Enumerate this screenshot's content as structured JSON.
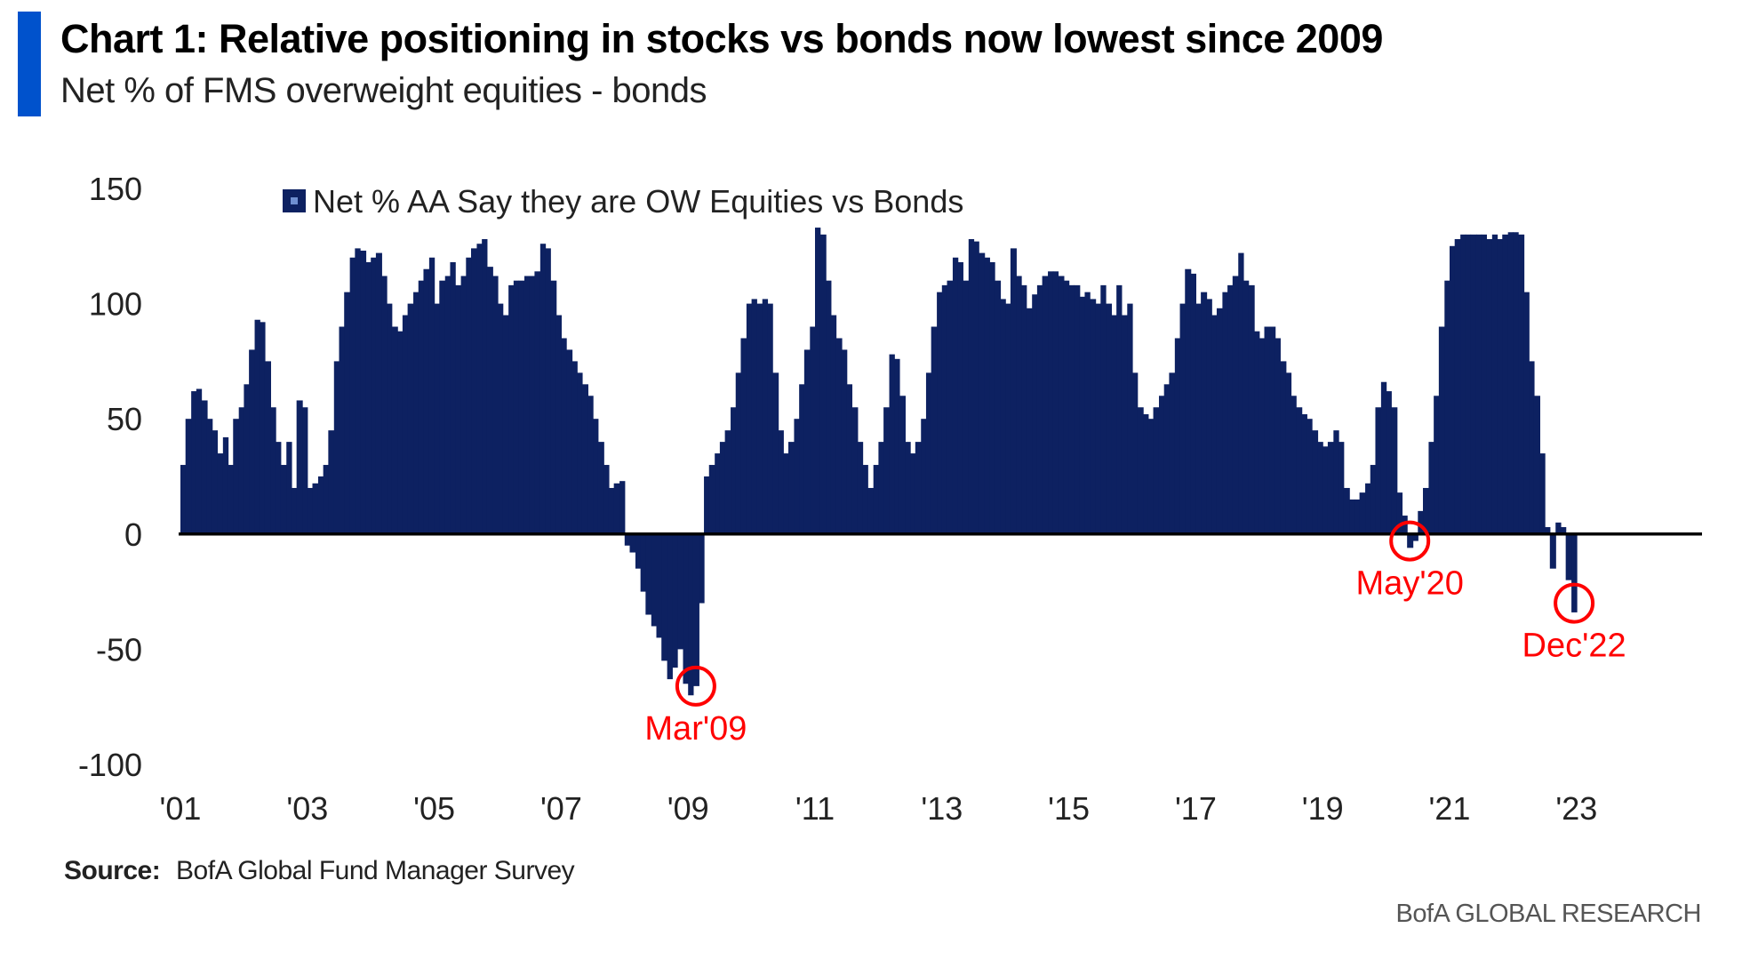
{
  "header": {
    "title": "Chart 1: Relative positioning in stocks vs bonds now lowest since 2009",
    "subtitle": "Net % of FMS overweight equities - bonds"
  },
  "footer": {
    "source_label": "Source:",
    "source_text": "BofA Global Fund Manager Survey",
    "brand": "BofA GLOBAL RESEARCH"
  },
  "colors": {
    "bars": "#0d2161",
    "zero_line": "#000000",
    "annotation": "#ff0000",
    "accent": "#0052cc"
  },
  "chart_data": {
    "type": "bar",
    "title": "",
    "xlabel": "",
    "ylabel": "",
    "ylim": [
      -100,
      150
    ],
    "yticks": [
      150,
      100,
      50,
      0,
      -50,
      -100
    ],
    "xticks": [
      {
        "label": "'01",
        "x": 2001
      },
      {
        "label": "'03",
        "x": 2003
      },
      {
        "label": "'05",
        "x": 2005
      },
      {
        "label": "'07",
        "x": 2007
      },
      {
        "label": "'09",
        "x": 2009
      },
      {
        "label": "'11",
        "x": 2011
      },
      {
        "label": "'13",
        "x": 2013
      },
      {
        "label": "'15",
        "x": 2015
      },
      {
        "label": "'17",
        "x": 2017
      },
      {
        "label": "'19",
        "x": 2019
      },
      {
        "label": "'21",
        "x": 2021
      },
      {
        "label": "'23",
        "x": 2023
      }
    ],
    "xlim": [
      2001,
      2024.8
    ],
    "legend": {
      "position": "top-left",
      "label": "Net % AA Say they are OW Equities vs Bonds"
    },
    "grid": false,
    "series": [
      {
        "name": "Net % AA Say they are OW Equities vs Bonds",
        "points": [
          [
            2001.0,
            30
          ],
          [
            2001.08,
            50
          ],
          [
            2001.17,
            62
          ],
          [
            2001.25,
            63
          ],
          [
            2001.33,
            58
          ],
          [
            2001.42,
            50
          ],
          [
            2001.5,
            45
          ],
          [
            2001.58,
            35
          ],
          [
            2001.67,
            42
          ],
          [
            2001.75,
            30
          ],
          [
            2001.83,
            50
          ],
          [
            2001.92,
            55
          ],
          [
            2002.0,
            65
          ],
          [
            2002.08,
            80
          ],
          [
            2002.17,
            93
          ],
          [
            2002.25,
            92
          ],
          [
            2002.33,
            75
          ],
          [
            2002.42,
            55
          ],
          [
            2002.5,
            40
          ],
          [
            2002.58,
            30
          ],
          [
            2002.67,
            40
          ],
          [
            2002.75,
            20
          ],
          [
            2002.83,
            58
          ],
          [
            2002.92,
            55
          ],
          [
            2003.0,
            20
          ],
          [
            2003.08,
            22
          ],
          [
            2003.17,
            25
          ],
          [
            2003.25,
            30
          ],
          [
            2003.33,
            45
          ],
          [
            2003.42,
            75
          ],
          [
            2003.5,
            90
          ],
          [
            2003.58,
            105
          ],
          [
            2003.67,
            120
          ],
          [
            2003.75,
            124
          ],
          [
            2003.83,
            123
          ],
          [
            2003.92,
            118
          ],
          [
            2004.0,
            120
          ],
          [
            2004.08,
            122
          ],
          [
            2004.17,
            112
          ],
          [
            2004.25,
            100
          ],
          [
            2004.33,
            90
          ],
          [
            2004.42,
            88
          ],
          [
            2004.5,
            95
          ],
          [
            2004.58,
            100
          ],
          [
            2004.67,
            105
          ],
          [
            2004.75,
            110
          ],
          [
            2004.83,
            115
          ],
          [
            2004.92,
            120
          ],
          [
            2005.0,
            100
          ],
          [
            2005.08,
            110
          ],
          [
            2005.17,
            112
          ],
          [
            2005.25,
            118
          ],
          [
            2005.33,
            108
          ],
          [
            2005.42,
            112
          ],
          [
            2005.5,
            120
          ],
          [
            2005.58,
            124
          ],
          [
            2005.67,
            126
          ],
          [
            2005.75,
            128
          ],
          [
            2005.83,
            116
          ],
          [
            2005.92,
            112
          ],
          [
            2006.0,
            100
          ],
          [
            2006.08,
            95
          ],
          [
            2006.17,
            108
          ],
          [
            2006.25,
            110
          ],
          [
            2006.33,
            110
          ],
          [
            2006.42,
            112
          ],
          [
            2006.5,
            112
          ],
          [
            2006.58,
            114
          ],
          [
            2006.67,
            126
          ],
          [
            2006.75,
            124
          ],
          [
            2006.83,
            110
          ],
          [
            2006.92,
            95
          ],
          [
            2007.0,
            85
          ],
          [
            2007.08,
            80
          ],
          [
            2007.17,
            75
          ],
          [
            2007.25,
            70
          ],
          [
            2007.33,
            65
          ],
          [
            2007.42,
            60
          ],
          [
            2007.5,
            50
          ],
          [
            2007.58,
            40
          ],
          [
            2007.67,
            30
          ],
          [
            2007.75,
            20
          ],
          [
            2007.83,
            22
          ],
          [
            2007.92,
            23
          ],
          [
            2008.0,
            -5
          ],
          [
            2008.08,
            -8
          ],
          [
            2008.17,
            -15
          ],
          [
            2008.25,
            -25
          ],
          [
            2008.33,
            -35
          ],
          [
            2008.42,
            -40
          ],
          [
            2008.5,
            -45
          ],
          [
            2008.58,
            -55
          ],
          [
            2008.67,
            -63
          ],
          [
            2008.75,
            -58
          ],
          [
            2008.83,
            -50
          ],
          [
            2008.92,
            -65
          ],
          [
            2009.0,
            -70
          ],
          [
            2009.08,
            -66
          ],
          [
            2009.17,
            -30
          ],
          [
            2009.25,
            25
          ],
          [
            2009.33,
            30
          ],
          [
            2009.42,
            35
          ],
          [
            2009.5,
            40
          ],
          [
            2009.58,
            45
          ],
          [
            2009.67,
            55
          ],
          [
            2009.75,
            70
          ],
          [
            2009.83,
            85
          ],
          [
            2009.92,
            100
          ],
          [
            2010.0,
            102
          ],
          [
            2010.08,
            100
          ],
          [
            2010.17,
            102
          ],
          [
            2010.25,
            100
          ],
          [
            2010.33,
            70
          ],
          [
            2010.42,
            45
          ],
          [
            2010.5,
            35
          ],
          [
            2010.58,
            40
          ],
          [
            2010.67,
            50
          ],
          [
            2010.75,
            65
          ],
          [
            2010.83,
            80
          ],
          [
            2010.92,
            90
          ],
          [
            2011.0,
            133
          ],
          [
            2011.08,
            130
          ],
          [
            2011.17,
            110
          ],
          [
            2011.25,
            95
          ],
          [
            2011.33,
            85
          ],
          [
            2011.42,
            80
          ],
          [
            2011.5,
            65
          ],
          [
            2011.58,
            55
          ],
          [
            2011.67,
            40
          ],
          [
            2011.75,
            30
          ],
          [
            2011.83,
            20
          ],
          [
            2011.92,
            30
          ],
          [
            2012.0,
            40
          ],
          [
            2012.08,
            55
          ],
          [
            2012.17,
            78
          ],
          [
            2012.25,
            76
          ],
          [
            2012.33,
            60
          ],
          [
            2012.42,
            40
          ],
          [
            2012.5,
            35
          ],
          [
            2012.58,
            40
          ],
          [
            2012.67,
            50
          ],
          [
            2012.75,
            70
          ],
          [
            2012.83,
            90
          ],
          [
            2012.92,
            105
          ],
          [
            2013.0,
            108
          ],
          [
            2013.08,
            110
          ],
          [
            2013.17,
            120
          ],
          [
            2013.25,
            118
          ],
          [
            2013.33,
            110
          ],
          [
            2013.42,
            128
          ],
          [
            2013.5,
            127
          ],
          [
            2013.58,
            122
          ],
          [
            2013.67,
            120
          ],
          [
            2013.75,
            118
          ],
          [
            2013.83,
            110
          ],
          [
            2013.92,
            102
          ],
          [
            2014.0,
            100
          ],
          [
            2014.08,
            124
          ],
          [
            2014.17,
            112
          ],
          [
            2014.25,
            108
          ],
          [
            2014.33,
            98
          ],
          [
            2014.42,
            104
          ],
          [
            2014.5,
            108
          ],
          [
            2014.58,
            112
          ],
          [
            2014.67,
            114
          ],
          [
            2014.75,
            114
          ],
          [
            2014.83,
            112
          ],
          [
            2014.92,
            110
          ],
          [
            2015.0,
            108
          ],
          [
            2015.08,
            108
          ],
          [
            2015.17,
            103
          ],
          [
            2015.25,
            105
          ],
          [
            2015.33,
            102
          ],
          [
            2015.42,
            100
          ],
          [
            2015.5,
            108
          ],
          [
            2015.58,
            100
          ],
          [
            2015.67,
            95
          ],
          [
            2015.75,
            108
          ],
          [
            2015.83,
            95
          ],
          [
            2015.92,
            100
          ],
          [
            2016.0,
            70
          ],
          [
            2016.08,
            55
          ],
          [
            2016.17,
            52
          ],
          [
            2016.25,
            50
          ],
          [
            2016.33,
            55
          ],
          [
            2016.42,
            60
          ],
          [
            2016.5,
            65
          ],
          [
            2016.58,
            70
          ],
          [
            2016.67,
            85
          ],
          [
            2016.75,
            100
          ],
          [
            2016.83,
            115
          ],
          [
            2016.92,
            113
          ],
          [
            2017.0,
            100
          ],
          [
            2017.08,
            105
          ],
          [
            2017.17,
            102
          ],
          [
            2017.25,
            95
          ],
          [
            2017.33,
            98
          ],
          [
            2017.42,
            105
          ],
          [
            2017.5,
            108
          ],
          [
            2017.58,
            112
          ],
          [
            2017.67,
            122
          ],
          [
            2017.75,
            110
          ],
          [
            2017.83,
            108
          ],
          [
            2017.92,
            88
          ],
          [
            2018.0,
            85
          ],
          [
            2018.08,
            90
          ],
          [
            2018.17,
            90
          ],
          [
            2018.25,
            85
          ],
          [
            2018.33,
            75
          ],
          [
            2018.42,
            70
          ],
          [
            2018.5,
            60
          ],
          [
            2018.58,
            55
          ],
          [
            2018.67,
            52
          ],
          [
            2018.75,
            50
          ],
          [
            2018.83,
            45
          ],
          [
            2018.92,
            40
          ],
          [
            2019.0,
            38
          ],
          [
            2019.08,
            40
          ],
          [
            2019.17,
            45
          ],
          [
            2019.25,
            40
          ],
          [
            2019.33,
            20
          ],
          [
            2019.42,
            15
          ],
          [
            2019.5,
            15
          ],
          [
            2019.58,
            18
          ],
          [
            2019.67,
            22
          ],
          [
            2019.75,
            30
          ],
          [
            2019.83,
            55
          ],
          [
            2019.92,
            66
          ],
          [
            2020.0,
            62
          ],
          [
            2020.08,
            55
          ],
          [
            2020.17,
            18
          ],
          [
            2020.25,
            8
          ],
          [
            2020.33,
            -6
          ],
          [
            2020.42,
            -3
          ],
          [
            2020.5,
            10
          ],
          [
            2020.58,
            20
          ],
          [
            2020.67,
            40
          ],
          [
            2020.75,
            60
          ],
          [
            2020.83,
            90
          ],
          [
            2020.92,
            110
          ],
          [
            2021.0,
            125
          ],
          [
            2021.08,
            128
          ],
          [
            2021.17,
            130
          ],
          [
            2021.25,
            130
          ],
          [
            2021.33,
            130
          ],
          [
            2021.42,
            130
          ],
          [
            2021.5,
            130
          ],
          [
            2021.58,
            128
          ],
          [
            2021.67,
            130
          ],
          [
            2021.75,
            128
          ],
          [
            2021.83,
            130
          ],
          [
            2021.92,
            131
          ],
          [
            2022.0,
            131
          ],
          [
            2022.08,
            130
          ],
          [
            2022.17,
            105
          ],
          [
            2022.25,
            75
          ],
          [
            2022.33,
            60
          ],
          [
            2022.42,
            35
          ],
          [
            2022.5,
            3
          ],
          [
            2022.58,
            -15
          ],
          [
            2022.67,
            5
          ],
          [
            2022.75,
            3
          ],
          [
            2022.83,
            -20
          ],
          [
            2022.92,
            -34
          ]
        ]
      }
    ],
    "annotations": [
      {
        "label": "Mar'09",
        "x": 2009.08,
        "y": -66,
        "label_position": "below"
      },
      {
        "label": "May'20",
        "x": 2020.33,
        "y": -3,
        "label_position": "below"
      },
      {
        "label": "Dec'22",
        "x": 2022.92,
        "y": -30,
        "label_position": "below"
      }
    ]
  }
}
